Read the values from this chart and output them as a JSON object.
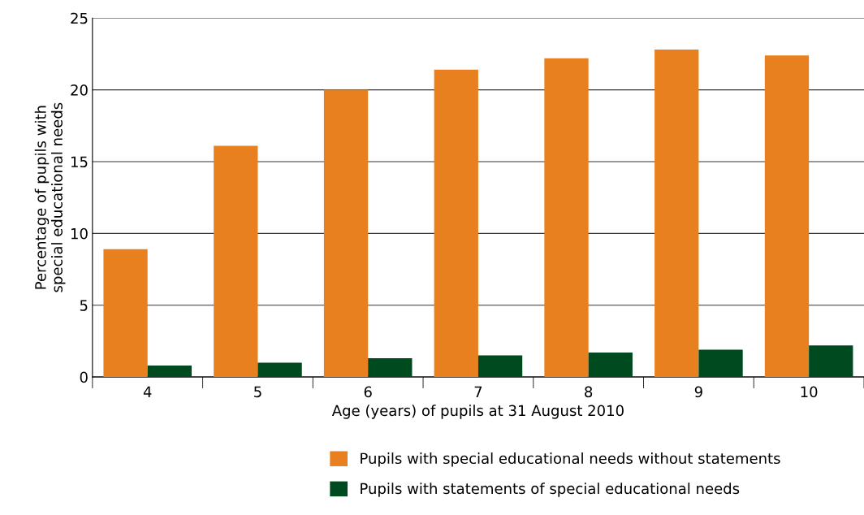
{
  "chart_data": {
    "type": "bar",
    "xlabel": "Age (years) of pupils at 31 August 2010",
    "ylabel": "Percentage of pupils with\nspecial educational needs",
    "categories": [
      "4",
      "5",
      "6",
      "7",
      "8",
      "9",
      "10"
    ],
    "series": [
      {
        "name": "Pupils with special educational needs without statements",
        "color": "#e8801f",
        "values": [
          8.9,
          16.1,
          20.0,
          21.4,
          22.2,
          22.8,
          22.4
        ]
      },
      {
        "name": "Pupils with statements of special educational needs",
        "color": "#004a1f",
        "values": [
          0.8,
          1.0,
          1.3,
          1.5,
          1.7,
          1.9,
          2.2
        ]
      }
    ],
    "ylim": [
      0,
      25
    ],
    "yticks": [
      0,
      5,
      10,
      15,
      20,
      25
    ],
    "grid": "y",
    "legend": "bottom"
  }
}
